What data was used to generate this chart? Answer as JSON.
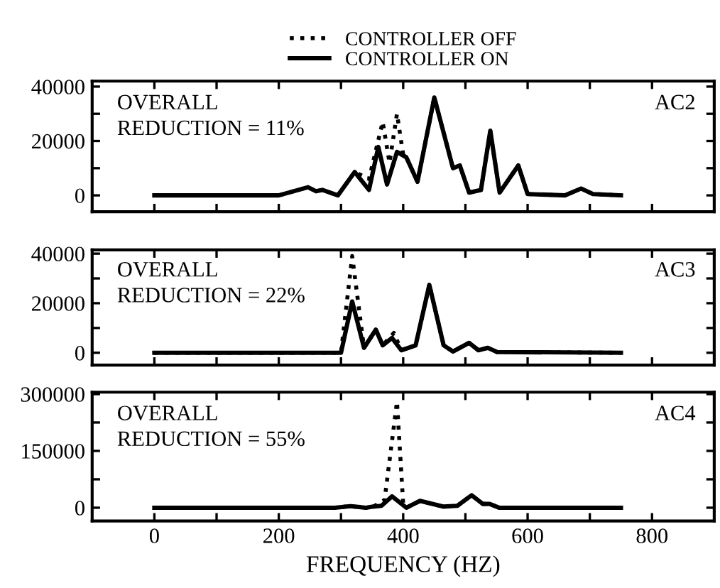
{
  "chart_data": [
    {
      "type": "line",
      "xlim": [
        -100,
        900
      ],
      "ylim": [
        -6000,
        42000
      ],
      "xticks": [
        0,
        {
          "value": 100,
          "label": null
        },
        200,
        {
          "value": 300,
          "label": null
        },
        400,
        {
          "value": 500,
          "label": null
        },
        600,
        {
          "value": 700,
          "label": null
        },
        800
      ],
      "yticks": [
        0,
        {
          "value": 10000,
          "label": null
        },
        20000,
        {
          "value": 30000,
          "label": null
        },
        40000
      ],
      "tick_labels": "y",
      "legend": "top",
      "grid": false,
      "annotations": [
        "OVERALL\nREDUCTION = 11%",
        "AC2"
      ],
      "series": [
        {
          "name": "CONTROLLER OFF",
          "color": "#000000",
          "line_style": "dotted",
          "x": [
            0,
            200,
            247,
            260,
            270,
            295,
            322,
            345,
            367,
            378,
            390,
            400,
            405,
            423,
            450,
            480,
            491,
            506,
            525,
            540,
            555,
            585,
            600,
            660,
            686,
            705,
            750
          ],
          "values": [
            0,
            0,
            3000,
            1500,
            2000,
            0,
            8600,
            6000,
            27000,
            12000,
            30000,
            15000,
            14000,
            5000,
            36000,
            10000,
            11000,
            1000,
            2000,
            23800,
            1000,
            11000,
            500,
            0,
            2500,
            500,
            0
          ]
        },
        {
          "name": "CONTROLLER ON",
          "color": "#000000",
          "line_style": "solid",
          "x": [
            0,
            200,
            247,
            260,
            270,
            295,
            322,
            345,
            360,
            374,
            390,
            405,
            423,
            450,
            480,
            491,
            506,
            525,
            540,
            555,
            585,
            600,
            660,
            686,
            705,
            750
          ],
          "values": [
            0,
            0,
            3000,
            1500,
            2000,
            0,
            8600,
            2000,
            17800,
            4000,
            16000,
            14000,
            5000,
            36000,
            10000,
            11000,
            1000,
            2000,
            23800,
            1000,
            11000,
            500,
            0,
            2500,
            500,
            0
          ]
        }
      ]
    },
    {
      "type": "line",
      "xlim": [
        -100,
        900
      ],
      "ylim": [
        -5000,
        41500
      ],
      "xticks": [
        0,
        {
          "value": 100,
          "label": null
        },
        200,
        {
          "value": 300,
          "label": null
        },
        400,
        {
          "value": 500,
          "label": null
        },
        600,
        {
          "value": 700,
          "label": null
        },
        800
      ],
      "yticks": [
        0,
        {
          "value": 10000,
          "label": null
        },
        20000,
        {
          "value": 30000,
          "label": null
        },
        40000
      ],
      "tick_labels": "y",
      "grid": false,
      "annotations": [
        "OVERALL\nREDUCTION = 22%",
        "AC3"
      ],
      "series": [
        {
          "color": "#000000",
          "line_style": "dotted",
          "x": [
            0,
            300,
            318,
            337,
            356,
            367,
            385,
            397,
            420,
            442,
            465,
            480,
            506,
            521,
            536,
            551,
            750
          ],
          "values": [
            0,
            0,
            39000,
            2000,
            9300,
            3000,
            8000,
            1000,
            3000,
            27400,
            3000,
            500,
            4000,
            1000,
            2000,
            300,
            0
          ]
        },
        {
          "color": "#000000",
          "line_style": "solid",
          "x": [
            0,
            300,
            318,
            337,
            356,
            367,
            382,
            397,
            420,
            442,
            465,
            480,
            506,
            521,
            536,
            551,
            750
          ],
          "values": [
            0,
            0,
            20700,
            2000,
            9300,
            3000,
            6000,
            1000,
            3000,
            27400,
            3000,
            500,
            4000,
            1000,
            2000,
            300,
            0
          ]
        }
      ]
    },
    {
      "type": "line",
      "xlim": [
        -100,
        900
      ],
      "ylim": [
        -35000,
        305000
      ],
      "xticks": [
        0,
        {
          "value": 100,
          "label": null
        },
        200,
        {
          "value": 300,
          "label": null
        },
        400,
        {
          "value": 500,
          "label": null
        },
        600,
        {
          "value": 700,
          "label": null
        },
        800
      ],
      "yticks": [
        0,
        {
          "value": 75000,
          "label": null
        },
        150000,
        {
          "value": 225000,
          "label": null
        },
        300000
      ],
      "xlabel": "FREQUENCY (HZ)",
      "grid": false,
      "annotations": [
        "OVERALL\nREDUCTION = 55%",
        "AC4"
      ],
      "series": [
        {
          "color": "#000000",
          "line_style": "dotted",
          "x": [
            0,
            290,
            315,
            340,
            352,
            370,
            390,
            400,
            405,
            427,
            464,
            487,
            510,
            528,
            539,
            554,
            750
          ],
          "values": [
            0,
            0,
            4000,
            0,
            3000,
            20000,
            280000,
            10000,
            0,
            18000,
            3000,
            5000,
            33000,
            10000,
            10000,
            0,
            0
          ]
        },
        {
          "color": "#000000",
          "line_style": "solid",
          "x": [
            0,
            290,
            315,
            340,
            352,
            365,
            382,
            405,
            427,
            464,
            487,
            510,
            528,
            539,
            554,
            750
          ],
          "values": [
            0,
            0,
            4000,
            0,
            3000,
            5000,
            30000,
            0,
            18000,
            3000,
            5000,
            33000,
            10000,
            10000,
            0,
            0
          ]
        }
      ]
    }
  ]
}
